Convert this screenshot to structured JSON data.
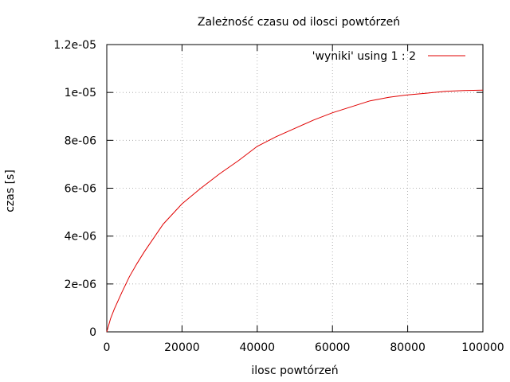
{
  "chart_data": {
    "type": "line",
    "title": "Zależność czasu od ilosci powtórzeń",
    "xlabel": "ilosc powtórzeń",
    "ylabel": "czas [s]",
    "xlim": [
      0,
      100000
    ],
    "ylim": [
      0,
      1.2e-05
    ],
    "x_ticks": [
      0,
      20000,
      40000,
      60000,
      80000,
      100000
    ],
    "x_tick_labels": [
      "0",
      "20000",
      "40000",
      "60000",
      "80000",
      "100000"
    ],
    "y_ticks": [
      0,
      2e-06,
      4e-06,
      6e-06,
      8e-06,
      1e-05,
      1.2e-05
    ],
    "y_tick_labels": [
      "0",
      "2e-06",
      "4e-06",
      "6e-06",
      "8e-06",
      "1e-05",
      "1.2e-05"
    ],
    "grid": true,
    "legend_position": "top-right",
    "series": [
      {
        "name": "'wyniki' using 1 : 2",
        "color": "#e00000",
        "x": [
          0,
          1000,
          2000,
          4000,
          6000,
          8000,
          10000,
          15000,
          20000,
          25000,
          30000,
          35000,
          40000,
          45000,
          50000,
          55000,
          60000,
          65000,
          70000,
          75000,
          80000,
          85000,
          90000,
          95000,
          100000
        ],
        "y": [
          0,
          5.5e-07,
          9.5e-07,
          1.65e-06,
          2.3e-06,
          2.85e-06,
          3.35e-06,
          4.5e-06,
          5.35e-06,
          6e-06,
          6.6e-06,
          7.15e-06,
          7.75e-06,
          8.15e-06,
          8.5e-06,
          8.85e-06,
          9.15e-06,
          9.4e-06,
          9.65e-06,
          9.8e-06,
          9.9e-06,
          9.97e-06,
          1.005e-05,
          1.008e-05,
          1.01e-05
        ]
      }
    ]
  }
}
